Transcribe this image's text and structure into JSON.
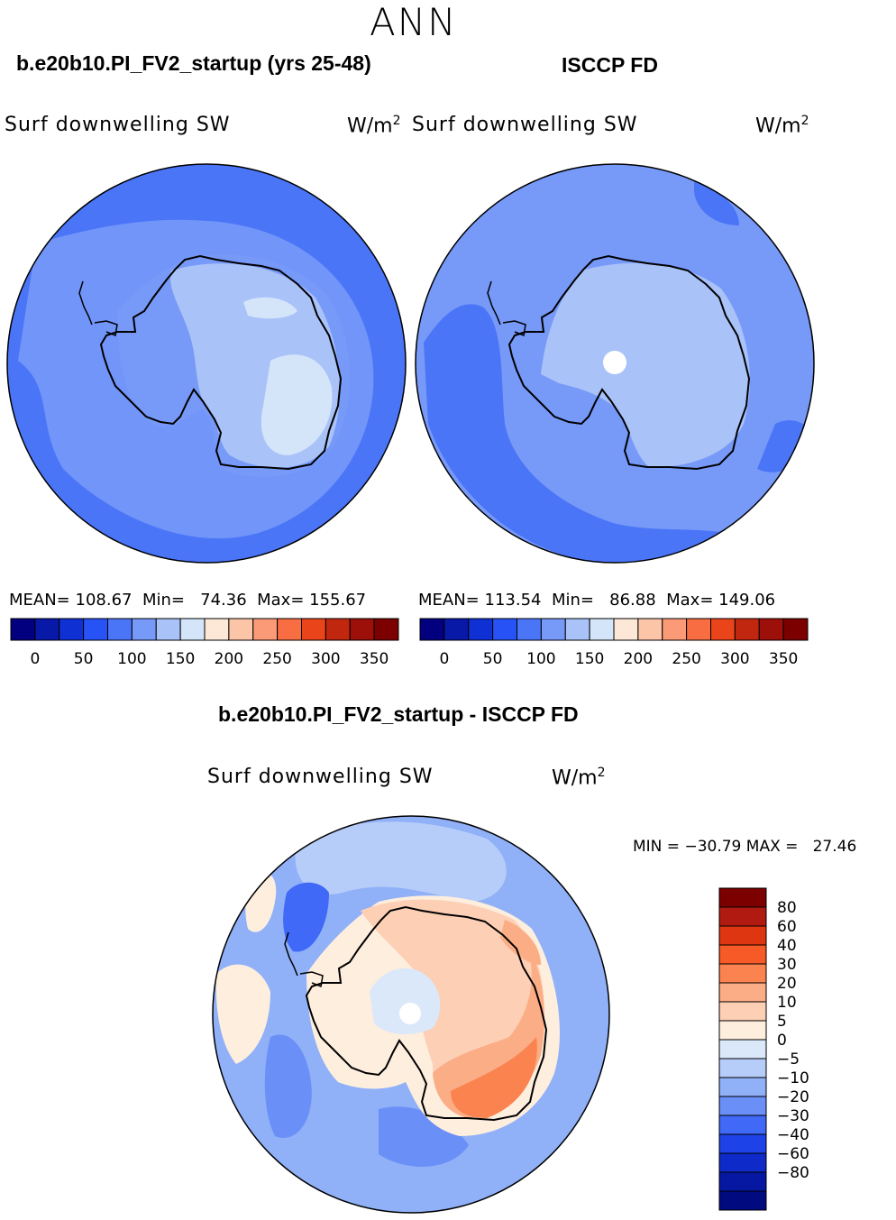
{
  "page": {
    "season": "ANN",
    "diff_title": "b.e20b10.PI_FV2_startup - ISCCP FD"
  },
  "panels": [
    {
      "case": "b.e20b10.PI_FV2_startup (yrs 25-48)",
      "variable": "Surf downwelling SW",
      "units": "W/m",
      "units_exp": "2",
      "stats": {
        "mean_label": "MEAN=",
        "mean": "108.67",
        "min_label": "Min=",
        "min": "74.36",
        "max_label": "Max=",
        "max": "155.67"
      }
    },
    {
      "case": "ISCCP FD",
      "variable": "Surf downwelling SW",
      "units": "W/m",
      "units_exp": "2",
      "stats": {
        "mean_label": "MEAN=",
        "mean": "113.54",
        "min_label": "Min=",
        "min": "86.88",
        "max_label": "Max=",
        "max": "149.06"
      }
    },
    {
      "case": "b.e20b10.PI_FV2_startup - ISCCP FD",
      "variable": "Surf downwelling SW",
      "units": "W/m",
      "units_exp": "2",
      "stats": {
        "min_label": "MIN =",
        "min": "−30.79",
        "max_label": "MAX =",
        "max": "27.46"
      }
    }
  ],
  "colorbar_abs": {
    "colors": [
      "#02007e",
      "#0819a8",
      "#0f31d4",
      "#2753f6",
      "#4a75f7",
      "#7799f8",
      "#a9c2f8",
      "#d4e5f9",
      "#fde8d8",
      "#fcc5a8",
      "#fa9a76",
      "#f86e42",
      "#e9441a",
      "#c1260e",
      "#9d100a",
      "#7c0000"
    ],
    "labels": [
      "0",
      "50",
      "100",
      "150",
      "200",
      "250",
      "300",
      "350"
    ]
  },
  "colorbar_diff": {
    "colors": [
      "#7c0000",
      "#b11a10",
      "#de3610",
      "#f75a27",
      "#fa8350",
      "#fbad85",
      "#fdcfb5",
      "#fdeede",
      "#dbe8fa",
      "#b6ccf9",
      "#90b0f8",
      "#6a8ff7",
      "#3f69f6",
      "#1d43e8",
      "#0e2ac8",
      "#0618a2",
      "#020a80"
    ],
    "labels": [
      "80",
      "60",
      "40",
      "30",
      "20",
      "10",
      "5",
      "0",
      "−5",
      "−10",
      "−20",
      "−30",
      "−40",
      "−60",
      "−80"
    ]
  },
  "map_legend": {
    "colors": {
      "ocean_mid": "#4a75f7",
      "ocean_light": "#7799f8",
      "ice_light": "#a9c2f8",
      "ice_lighter": "#d4e5f9",
      "diff_pos_weak": "#fdeede",
      "diff_pos_small": "#fdcfb5",
      "diff_pos_mid": "#fbad85",
      "diff_pos_high": "#fa8350",
      "diff_neg_weak": "#dbe8fa",
      "diff_neg_small": "#b6ccf9",
      "diff_neg_mid": "#90b0f8",
      "diff_neg_high": "#6a8ff7",
      "diff_neg_strong": "#3f69f6"
    }
  }
}
